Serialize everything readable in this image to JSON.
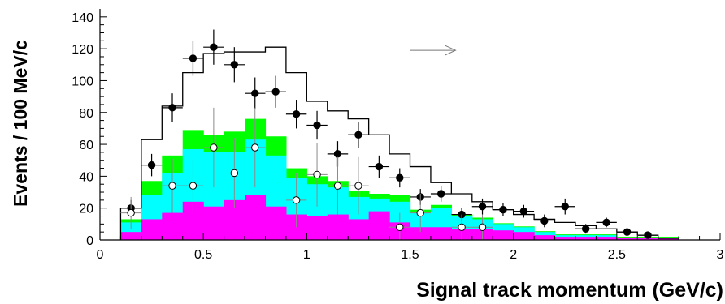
{
  "chart_data": {
    "type": "bar",
    "title": "",
    "xlabel": "Signal track momentum  (GeV/c)",
    "ylabel": "Events / 100 MeV/c",
    "xlim": [
      0,
      3
    ],
    "ylim": [
      0,
      145
    ],
    "x_ticks": [
      0,
      0.5,
      1,
      1.5,
      2,
      2.5,
      3
    ],
    "x_tick_labels": [
      "0",
      "0.5",
      "1",
      "1.5",
      "2",
      "2.5",
      "3"
    ],
    "y_ticks": [
      0,
      20,
      40,
      60,
      80,
      100,
      120,
      140
    ],
    "y_tick_labels": [
      "0",
      "20",
      "40",
      "60",
      "80",
      "100",
      "120",
      "140"
    ],
    "grid": false,
    "legend": "none",
    "bin_edges": [
      0.1,
      0.2,
      0.3,
      0.4,
      0.5,
      0.6,
      0.7,
      0.8,
      0.9,
      1.0,
      1.1,
      1.2,
      1.3,
      1.4,
      1.5,
      1.6,
      1.7,
      1.8,
      1.9,
      2.0,
      2.1,
      2.2,
      2.3,
      2.4,
      2.5,
      2.6,
      2.7,
      2.8
    ],
    "stacked_histogram": [
      {
        "color": "#ff00ff",
        "values": [
          5,
          13,
          17,
          24,
          21,
          25,
          28,
          21,
          16,
          15,
          16,
          13,
          18,
          11,
          8,
          8,
          7,
          7,
          6,
          5,
          3,
          2,
          2,
          2,
          1,
          1,
          1
        ]
      },
      {
        "color": "#00ffff",
        "values": [
          6,
          15,
          25,
          33,
          34,
          30,
          35,
          32,
          23,
          20,
          17,
          14,
          8,
          13,
          9,
          12,
          8,
          6,
          4,
          3,
          2,
          1,
          1,
          1,
          0.5,
          0.5,
          0.5
        ]
      },
      {
        "color": "#00ff00",
        "values": [
          2,
          9,
          11,
          12,
          11,
          13,
          13,
          12,
          6,
          5,
          4,
          4,
          3,
          4,
          2,
          2,
          1,
          1,
          0.5,
          0.5,
          0.5,
          0.5,
          0.5,
          0.5,
          0.5,
          0.5,
          0.5
        ]
      }
    ],
    "total_histogram": {
      "color": "#000000",
      "values": [
        20,
        63,
        84,
        105,
        117,
        118,
        118,
        121,
        105,
        87,
        81,
        76,
        66,
        54,
        46,
        36,
        29,
        24,
        19,
        16,
        13,
        11,
        9,
        7,
        5,
        3,
        1
      ]
    },
    "series": [
      {
        "name": "",
        "marker": "filled-circle",
        "x": [
          0.15,
          0.25,
          0.35,
          0.45,
          0.55,
          0.65,
          0.75,
          0.85,
          0.95,
          1.05,
          1.15,
          1.25,
          1.35,
          1.45,
          1.55,
          1.65,
          1.75,
          1.85,
          1.95,
          2.05,
          2.15,
          2.25,
          2.35,
          2.45,
          2.55,
          2.65
        ],
        "y": [
          20,
          47,
          83,
          114,
          121,
          110,
          92,
          93,
          79,
          72,
          54,
          66,
          46,
          39,
          27,
          29,
          16,
          21,
          19,
          18,
          12,
          21,
          7,
          11,
          5,
          3
        ],
        "err": [
          5,
          7,
          9,
          11,
          11,
          11,
          10,
          10,
          9,
          9,
          8,
          8,
          7,
          6,
          5,
          5,
          4,
          5,
          4,
          4,
          4,
          5,
          3,
          3,
          2,
          2
        ]
      },
      {
        "name": "",
        "marker": "open-circle",
        "x": [
          0.15,
          0.35,
          0.45,
          0.55,
          0.65,
          0.75,
          0.95,
          1.05,
          1.15,
          1.25,
          1.45,
          1.55,
          1.75,
          1.85
        ],
        "y": [
          17,
          34,
          34,
          58,
          42,
          58,
          25,
          41,
          34,
          34,
          8,
          17,
          8,
          8
        ],
        "err": [
          10,
          17,
          17,
          25,
          22,
          25,
          17,
          20,
          18,
          18,
          9,
          12,
          8,
          8
        ]
      }
    ],
    "annotations": [
      {
        "type": "cut-line",
        "x": 1.5,
        "y_range": [
          65,
          140
        ]
      },
      {
        "type": "arrow",
        "x_from": 1.5,
        "x_to": 1.72,
        "y": 119
      }
    ]
  }
}
